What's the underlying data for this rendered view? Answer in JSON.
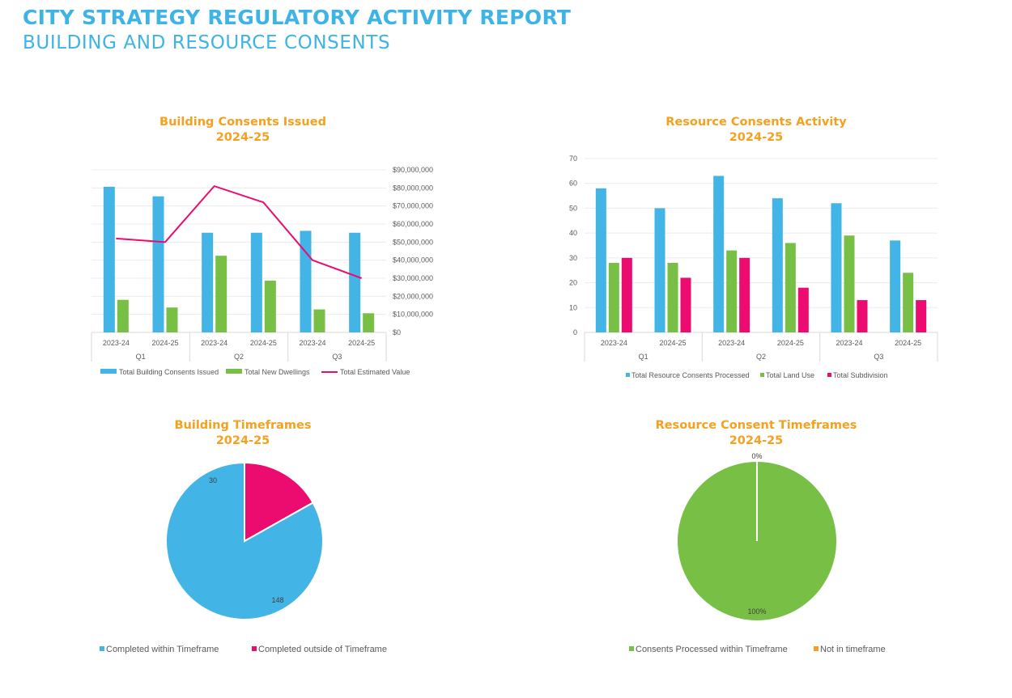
{
  "header": {
    "title": "CITY STRATEGY REGULATORY ACTIVITY REPORT",
    "subtitle": "BUILDING AND RESOURCE CONSENTS"
  },
  "colors": {
    "blue": "#42b4e6",
    "green": "#77bf45",
    "pink": "#ec0b6f",
    "orange": "#f5a01f"
  },
  "chart_data": [
    {
      "type": "bar",
      "title": "Building Consents Issued",
      "subtitle": "2024-25",
      "categories": [
        "2023-24",
        "2024-25",
        "2023-24",
        "2024-25",
        "2023-24",
        "2024-25"
      ],
      "groups": [
        "Q1",
        "Q2",
        "Q3"
      ],
      "series": [
        {
          "name": "Total Building Consents Issued",
          "type": "bar",
          "axis": "left",
          "color": "#42b4e6",
          "values": [
            76,
            71,
            52,
            52,
            53,
            52
          ]
        },
        {
          "name": "Total New Dwellings",
          "type": "bar",
          "axis": "left",
          "color": "#77bf45",
          "values": [
            17,
            13,
            40,
            27,
            12,
            10
          ]
        },
        {
          "name": "Total Estimated Value",
          "type": "line",
          "axis": "right",
          "color": "#ec0b6f",
          "values": [
            52000000,
            50000000,
            81000000,
            72000000,
            40000000,
            30000000
          ]
        }
      ],
      "y_right_ticks": [
        "$0",
        "$10,000,000",
        "$20,000,000",
        "$30,000,000",
        "$40,000,000",
        "$50,000,000",
        "$60,000,000",
        "$70,000,000",
        "$80,000,000",
        "$90,000,000"
      ],
      "y_right_range": [
        0,
        90000000
      ],
      "grid": true,
      "legend": "bottom"
    },
    {
      "type": "bar",
      "title": "Resource Consents Activity",
      "subtitle": "2024-25",
      "categories": [
        "2023-24",
        "2024-25",
        "2023-24",
        "2024-25",
        "2023-24",
        "2024-25"
      ],
      "groups": [
        "Q1",
        "Q2",
        "Q3"
      ],
      "series": [
        {
          "name": "Total Resource Consents Processed",
          "color": "#42b4e6",
          "values": [
            58,
            50,
            63,
            54,
            52,
            37
          ]
        },
        {
          "name": "Total Land Use",
          "color": "#77bf45",
          "values": [
            28,
            28,
            33,
            36,
            39,
            24
          ]
        },
        {
          "name": "Total Subdivision",
          "color": "#ec0b6f",
          "values": [
            30,
            22,
            30,
            18,
            13,
            13
          ]
        }
      ],
      "y_ticks": [
        "0",
        "10",
        "20",
        "30",
        "40",
        "50",
        "60",
        "70"
      ],
      "ylim": [
        0,
        70
      ],
      "grid": true,
      "legend": "bottom"
    },
    {
      "type": "pie",
      "title": "Building Timeframes",
      "subtitle": "2024-25",
      "slices": [
        {
          "label": "Completed within Timeframe",
          "value": 148,
          "display": "148",
          "color": "#42b4e6"
        },
        {
          "label": "Completed outside of Timeframe",
          "value": 30,
          "display": "30",
          "color": "#ec0b6f"
        }
      ],
      "legend": "bottom"
    },
    {
      "type": "pie",
      "title": "Resource Consent Timeframes",
      "subtitle": "2024-25",
      "slices": [
        {
          "label": "Consents Processed within Timeframe",
          "value": 100,
          "display": "100%",
          "color": "#77bf45"
        },
        {
          "label": "Not in timeframe",
          "value": 0,
          "display": "0%",
          "color": "#f5a01f"
        }
      ],
      "legend": "bottom"
    }
  ]
}
